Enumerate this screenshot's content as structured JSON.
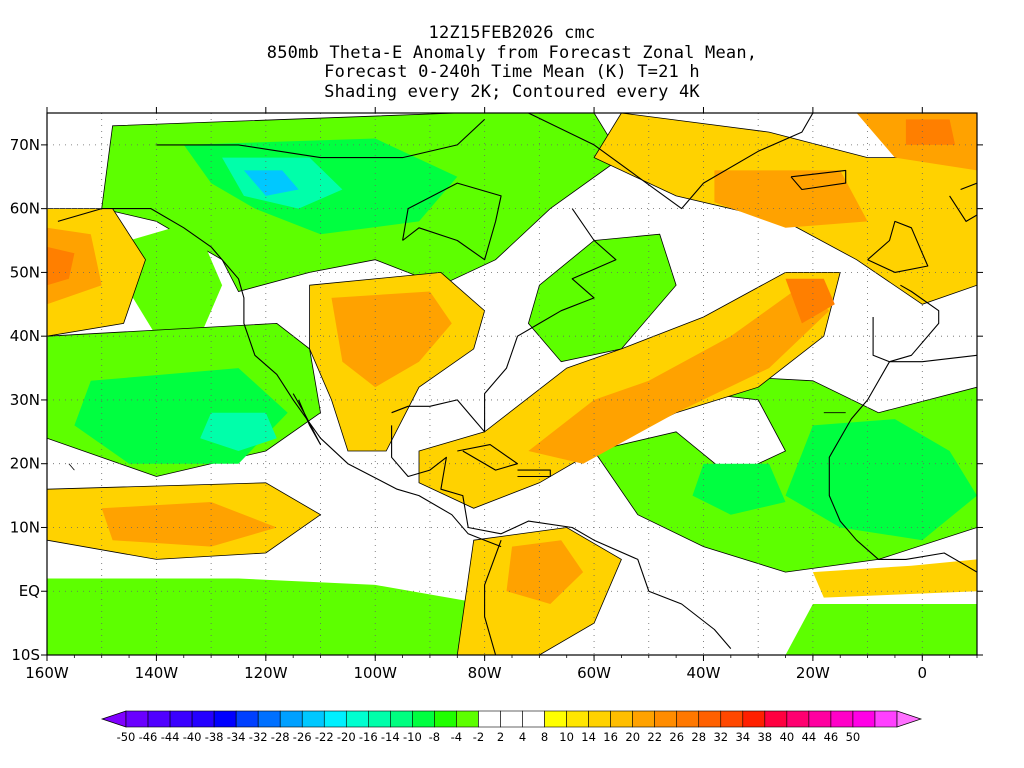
{
  "title": {
    "line1": "12Z15FEB2026 cmc",
    "line2": "850mb Theta-E Anomaly from Forecast Zonal Mean,",
    "line3": "Forecast 0-240h Time Mean (K) T=21 h",
    "line4": "Shading every 2K; Contoured every 4K"
  },
  "map": {
    "lon_range": [
      -160,
      10
    ],
    "lat_range": [
      -10,
      75
    ],
    "lat_ticks": [
      {
        "lat": 70,
        "label": "70N"
      },
      {
        "lat": 60,
        "label": "60N"
      },
      {
        "lat": 50,
        "label": "50N"
      },
      {
        "lat": 40,
        "label": "40N"
      },
      {
        "lat": 30,
        "label": "30N"
      },
      {
        "lat": 20,
        "label": "20N"
      },
      {
        "lat": 10,
        "label": "10N"
      },
      {
        "lat": 0,
        "label": "EQ"
      },
      {
        "lat": -10,
        "label": "10S"
      }
    ],
    "lon_ticks": [
      {
        "lon": -160,
        "label": "160W"
      },
      {
        "lon": -140,
        "label": "140W"
      },
      {
        "lon": -120,
        "label": "120W"
      },
      {
        "lon": -100,
        "label": "100W"
      },
      {
        "lon": -80,
        "label": "80W"
      },
      {
        "lon": -60,
        "label": "60W"
      },
      {
        "lon": -40,
        "label": "40W"
      },
      {
        "lon": -20,
        "label": "20W"
      },
      {
        "lon": 0,
        "label": "0"
      }
    ],
    "colors": {
      "strong_warm": "#ff7f00",
      "warm": "#ffa200",
      "mild_warm": "#ffd200",
      "weak_warm": "#ffff00",
      "weak_cold": "#5dff00",
      "cold": "#00ff40",
      "strong_cold": "#00ffaa",
      "core_cold": "#00c8ff",
      "coast": "#000000"
    }
  },
  "colorbar": {
    "colors": [
      "#8000ff",
      "#6a00ff",
      "#5000ff",
      "#3a00ff",
      "#2400ff",
      "#0000ff",
      "#0040ff",
      "#0070ff",
      "#00a0ff",
      "#00c8ff",
      "#00f0ff",
      "#00ffd0",
      "#00ffaa",
      "#00ff80",
      "#00ff40",
      "#20ff00",
      "#5dff00",
      "#ffffff",
      "#ffffff",
      "#ffffff",
      "#ffff00",
      "#ffe600",
      "#ffd200",
      "#ffbe00",
      "#ffa200",
      "#ff8c00",
      "#ff7800",
      "#ff6000",
      "#ff4800",
      "#ff2000",
      "#ff0040",
      "#ff0070",
      "#ff00a0",
      "#ff00c8",
      "#ff00e6",
      "#ff40ff",
      "#ff70ff"
    ],
    "labels": [
      "-50",
      "-46",
      "-44",
      "-40",
      "-38",
      "-34",
      "-32",
      "-28",
      "-26",
      "-22",
      "-20",
      "-16",
      "-14",
      "-10",
      "-8",
      "-4",
      "-2",
      "2",
      "4",
      "8",
      "10",
      "14",
      "16",
      "20",
      "22",
      "26",
      "28",
      "32",
      "34",
      "38",
      "40",
      "44",
      "46",
      "50"
    ]
  }
}
